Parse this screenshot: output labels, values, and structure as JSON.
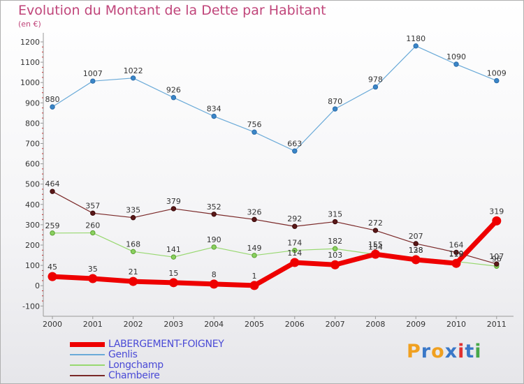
{
  "title": "Evolution du Montant de la Dette par Habitant",
  "subtitle": "(en €)",
  "logo": {
    "letters": [
      "P",
      "r",
      "o",
      "x",
      "i",
      "t",
      "i"
    ],
    "colors": [
      "#f0a020",
      "#3a78c8",
      "#f0a020",
      "#3a78c8",
      "#e03030",
      "#3a78c8",
      "#48a848"
    ]
  },
  "chart_data": {
    "type": "line",
    "title": "Evolution du Montant de la Dette par Habitant",
    "subtitle": "(en €)",
    "xlabel": "",
    "ylabel": "",
    "x": [
      "2000",
      "2001",
      "2002",
      "2003",
      "2004",
      "2005",
      "2006",
      "2007",
      "2008",
      "2009",
      "2010",
      "2011"
    ],
    "yticks": [
      -100,
      0,
      100,
      200,
      300,
      400,
      500,
      600,
      700,
      800,
      900,
      1000,
      1100,
      1200
    ],
    "ylim": [
      -100,
      1200
    ],
    "grid": false,
    "legend_position": "bottom-left",
    "series": [
      {
        "name": "Genlis",
        "color": "#6aaad8",
        "values": [
          880,
          1007,
          1022,
          926,
          834,
          756,
          663,
          870,
          978,
          1180,
          1090,
          1009
        ],
        "labels": [
          "880",
          "1007",
          "1022",
          "926",
          "834",
          "756",
          "663",
          "870",
          "978",
          "1180",
          "1090",
          "1009"
        ]
      },
      {
        "name": "Longchamp",
        "color": "#98d870",
        "values": [
          259,
          260,
          168,
          141,
          190,
          149,
          174,
          182,
          154,
          138,
          119,
          96
        ],
        "labels": [
          "259",
          "260",
          "168",
          "141",
          "190",
          "149",
          "174",
          "182",
          "154",
          "138",
          "119",
          "96"
        ]
      },
      {
        "name": "Chambeire",
        "color": "#7a2828",
        "values": [
          464,
          357,
          335,
          379,
          352,
          326,
          292,
          315,
          272,
          207,
          164,
          107
        ],
        "labels": [
          "464",
          "357",
          "335",
          "379",
          "352",
          "326",
          "292",
          "315",
          "272",
          "207",
          "164",
          "107"
        ]
      },
      {
        "name": "LABERGEMENT-FOIGNEY",
        "color": "#ee0000",
        "values": [
          45,
          35,
          21,
          15,
          8,
          1,
          114,
          103,
          155,
          128,
          110,
          319
        ],
        "labels": [
          "45",
          "35",
          "21",
          "15",
          "8",
          "1",
          "114",
          "103",
          "155",
          "128",
          "110",
          "319"
        ]
      }
    ]
  },
  "legend": [
    {
      "name": "LABERGEMENT-FOIGNEY",
      "color": "#ee0000"
    },
    {
      "name": "Genlis",
      "color": "#6aaad8"
    },
    {
      "name": "Longchamp",
      "color": "#98d870"
    },
    {
      "name": "Chambeire",
      "color": "#7a2828"
    }
  ]
}
